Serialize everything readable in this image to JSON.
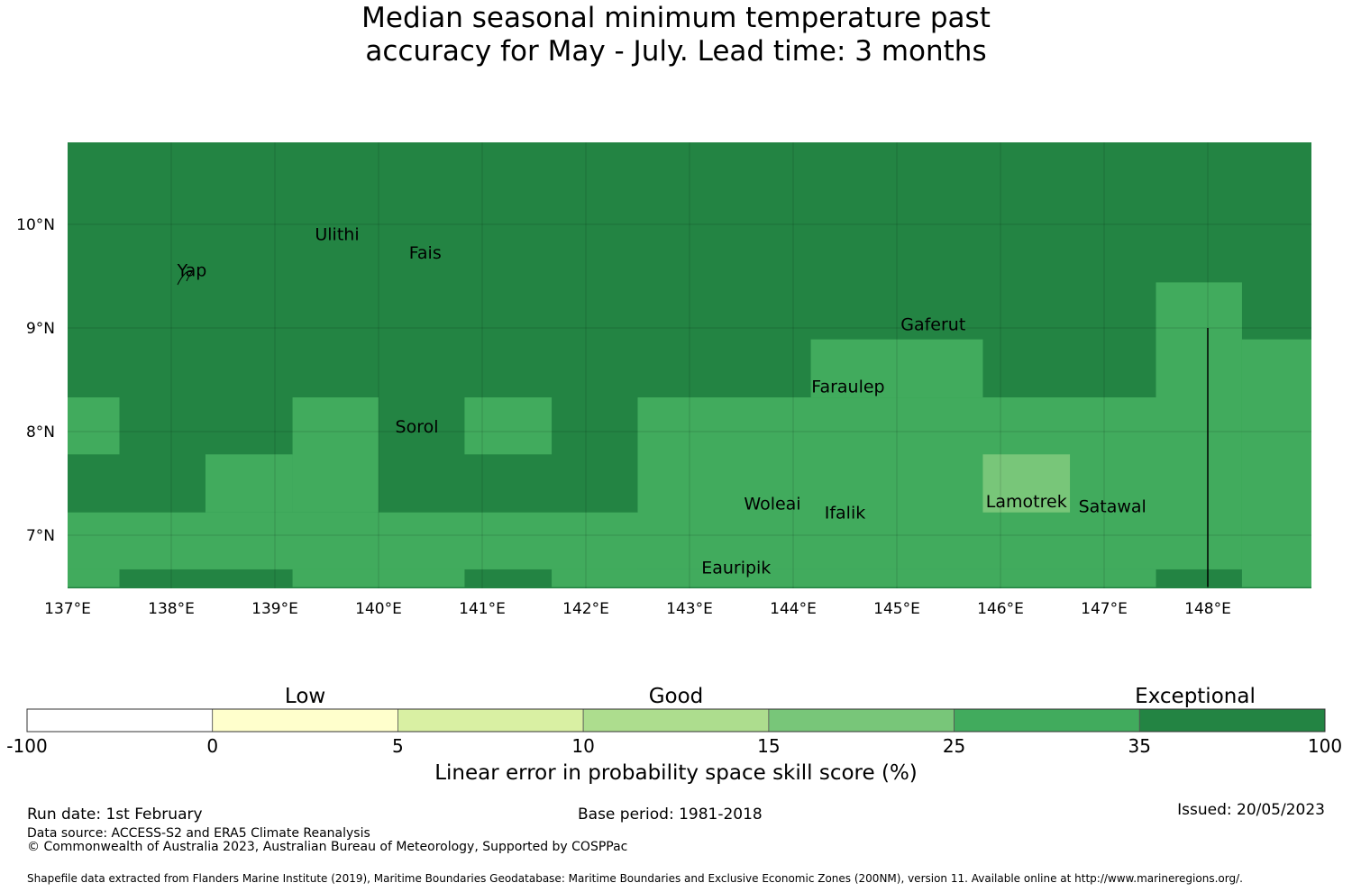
{
  "title": {
    "line1": "Median seasonal minimum temperature past",
    "line2": "accuracy for May - July. Lead time: 3 months"
  },
  "map": {
    "lon_range": [
      137.0,
      149.0
    ],
    "lat_range": [
      6.5,
      10.8
    ],
    "lon_ticks": [
      {
        "value": 137,
        "label": "137°E"
      },
      {
        "value": 138,
        "label": "138°E"
      },
      {
        "value": 139,
        "label": "139°E"
      },
      {
        "value": 140,
        "label": "140°E"
      },
      {
        "value": 141,
        "label": "141°E"
      },
      {
        "value": 142,
        "label": "142°E"
      },
      {
        "value": 143,
        "label": "143°E"
      },
      {
        "value": 144,
        "label": "144°E"
      },
      {
        "value": 145,
        "label": "145°E"
      },
      {
        "value": 146,
        "label": "146°E"
      },
      {
        "value": 147,
        "label": "147°E"
      },
      {
        "value": 148,
        "label": "148°E"
      }
    ],
    "lat_ticks": [
      {
        "value": 7,
        "label": "7°N"
      },
      {
        "value": 8,
        "label": "8°N"
      },
      {
        "value": 9,
        "label": "9°N"
      },
      {
        "value": 10,
        "label": "10°N"
      }
    ],
    "grid_cell_deg": 0.833,
    "background_category": "35-100",
    "cells": [
      {
        "lon0": 137.0,
        "lon1": 137.5,
        "lat0": 7.78,
        "lat1": 8.33,
        "category": "25-35"
      },
      {
        "lon0": 138.33,
        "lon1": 139.17,
        "lat0": 7.22,
        "lat1": 7.78,
        "category": "25-35"
      },
      {
        "lon0": 139.17,
        "lon1": 140.0,
        "lat0": 7.22,
        "lat1": 8.33,
        "category": "25-35"
      },
      {
        "lon0": 140.83,
        "lon1": 141.67,
        "lat0": 7.78,
        "lat1": 8.33,
        "category": "25-35"
      },
      {
        "lon0": 137.0,
        "lon1": 142.5,
        "lat0": 6.67,
        "lat1": 7.22,
        "category": "25-35"
      },
      {
        "lon0": 137.0,
        "lon1": 137.5,
        "lat0": 6.5,
        "lat1": 6.67,
        "category": "25-35"
      },
      {
        "lon0": 139.17,
        "lon1": 140.83,
        "lat0": 6.5,
        "lat1": 6.67,
        "category": "25-35"
      },
      {
        "lon0": 141.67,
        "lon1": 147.5,
        "lat0": 6.5,
        "lat1": 6.67,
        "category": "25-35"
      },
      {
        "lon0": 142.5,
        "lon1": 147.5,
        "lat0": 6.67,
        "lat1": 8.33,
        "category": "25-35"
      },
      {
        "lon0": 144.17,
        "lon1": 145.83,
        "lat0": 8.33,
        "lat1": 8.89,
        "category": "25-35"
      },
      {
        "lon0": 147.5,
        "lon1": 148.33,
        "lat0": 6.67,
        "lat1": 9.44,
        "category": "25-35"
      },
      {
        "lon0": 148.33,
        "lon1": 149.0,
        "lat0": 6.5,
        "lat1": 8.89,
        "category": "25-35"
      },
      {
        "lon0": 145.83,
        "lon1": 146.67,
        "lat0": 7.22,
        "lat1": 7.78,
        "category": "15-25"
      }
    ],
    "boundary_line": {
      "lon": 148.0,
      "lat0": 6.5,
      "lat1": 9.0
    },
    "places": [
      {
        "name": "Ulithi",
        "lon": 139.6,
        "lat": 9.85
      },
      {
        "name": "Fais",
        "lon": 140.45,
        "lat": 9.67
      },
      {
        "name": "Yap",
        "lon": 138.2,
        "lat": 9.5
      },
      {
        "name": "Gaferut",
        "lon": 145.35,
        "lat": 8.98
      },
      {
        "name": "Faraulep",
        "lon": 144.53,
        "lat": 8.38
      },
      {
        "name": "Sorol",
        "lon": 140.37,
        "lat": 7.99
      },
      {
        "name": "Woleai",
        "lon": 143.8,
        "lat": 7.25
      },
      {
        "name": "Ifalik",
        "lon": 144.5,
        "lat": 7.16
      },
      {
        "name": "Lamotrek",
        "lon": 146.25,
        "lat": 7.27
      },
      {
        "name": "Satawal",
        "lon": 147.08,
        "lat": 7.22
      },
      {
        "name": "Eauripik",
        "lon": 143.45,
        "lat": 6.63
      }
    ]
  },
  "colorbar": {
    "categories": [
      {
        "label": "Low",
        "position": "0-5 band"
      },
      {
        "label": "Good",
        "position": "10-15 band"
      },
      {
        "label": "Exceptional",
        "position": "35-100 band"
      }
    ],
    "bins": [
      {
        "from": "-100",
        "to": "0",
        "color": "#ffffff",
        "key": "-100-0"
      },
      {
        "from": "0",
        "to": "5",
        "color": "#ffffcc",
        "key": "0-5"
      },
      {
        "from": "5",
        "to": "10",
        "color": "#d9f0a3",
        "key": "5-10"
      },
      {
        "from": "10",
        "to": "15",
        "color": "#addd8e",
        "key": "10-15"
      },
      {
        "from": "15",
        "to": "25",
        "color": "#78c679",
        "key": "15-25"
      },
      {
        "from": "25",
        "to": "35",
        "color": "#41ab5d",
        "key": "25-35"
      },
      {
        "from": "35",
        "to": "100",
        "color": "#238443",
        "key": "35-100"
      }
    ],
    "tick_labels": [
      "-100",
      "0",
      "5",
      "10",
      "15",
      "25",
      "35",
      "100"
    ],
    "xlabel": "Linear error in probability space skill score (%)"
  },
  "footer": {
    "run_date": "Run date: 1st February",
    "base_period": "Base period: 1981-2018",
    "issued": "Issued: 20/05/2023",
    "data_source": "Data source: ACCESS-S2 and ERA5 Climate Reanalysis",
    "copyright": "© Commonwealth of Australia 2023, Australian Bureau of Meteorology, Supported by COSPPac",
    "shapefile": "Shapefile data extracted from Flanders Marine Institute (2019), Maritime Boundaries Geodatabase: Maritime Boundaries and Exclusive Economic Zones (200NM), version 11. Available online at http://www.marineregions.org/."
  }
}
